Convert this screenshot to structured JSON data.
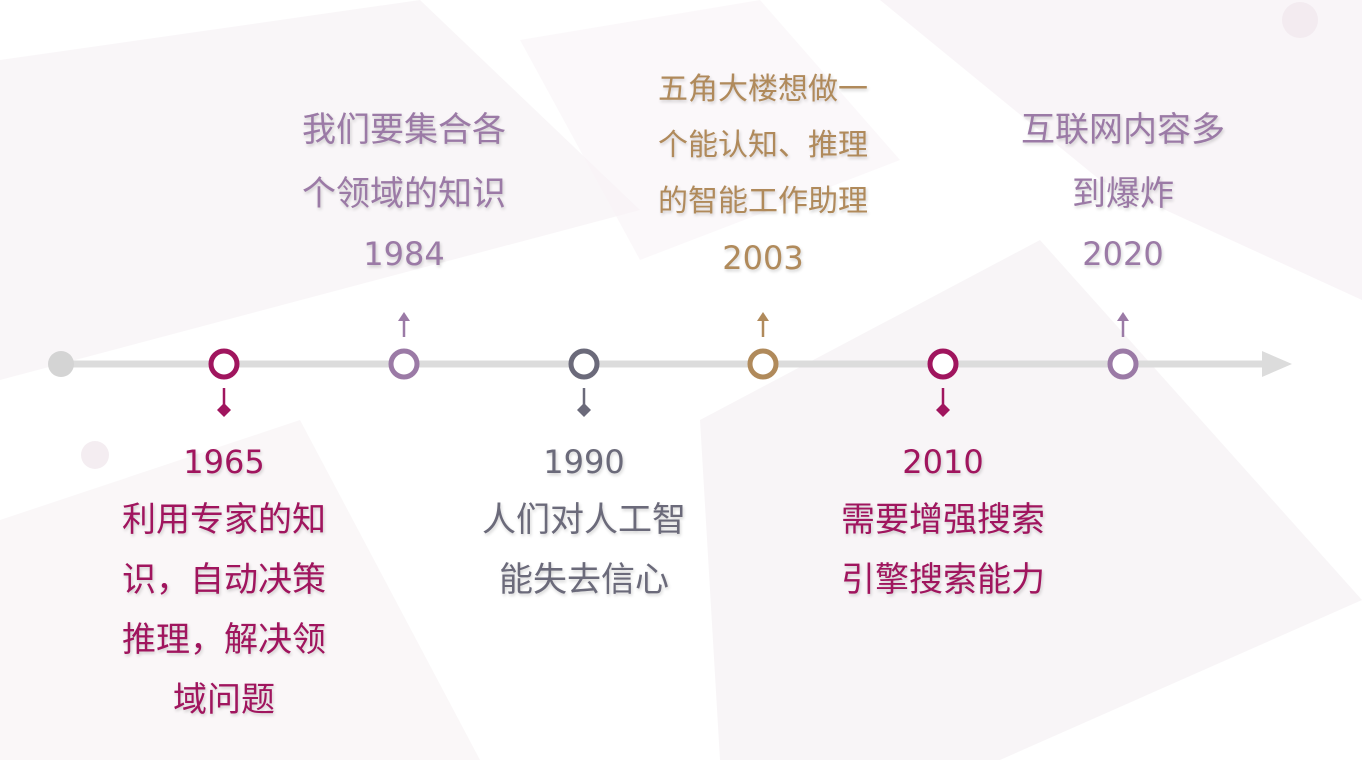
{
  "colors": {
    "magenta": "#a0155e",
    "lavender": "#9b7aa6",
    "slate": "#6b6a7a",
    "gold": "#b08a5b",
    "axis": "#dcdcdc",
    "start_dot": "#d4d4d4"
  },
  "events": [
    {
      "year": "1965",
      "lines": [
        "利用专家的知",
        "识，自动决策",
        "推理，解决领",
        "域问题"
      ],
      "position": "below",
      "color": "#a0155e"
    },
    {
      "year": "1984",
      "lines": [
        "我们要集合各",
        "个领域的知识"
      ],
      "position": "above",
      "color": "#9b7aa6"
    },
    {
      "year": "1990",
      "lines": [
        "人们对人工智",
        "能失去信心"
      ],
      "position": "below",
      "color": "#6b6a7a"
    },
    {
      "year": "2003",
      "lines": [
        "五角大楼想做一",
        "个能认知、推理",
        "的智能工作助理"
      ],
      "position": "above",
      "color": "#b08a5b"
    },
    {
      "year": "2010",
      "lines": [
        "需要增强搜索",
        "引擎搜索能力"
      ],
      "position": "below",
      "color": "#a0155e"
    },
    {
      "year": "2020",
      "lines": [
        "互联网内容多",
        "到爆炸"
      ],
      "position": "above",
      "color": "#9b7aa6"
    }
  ]
}
